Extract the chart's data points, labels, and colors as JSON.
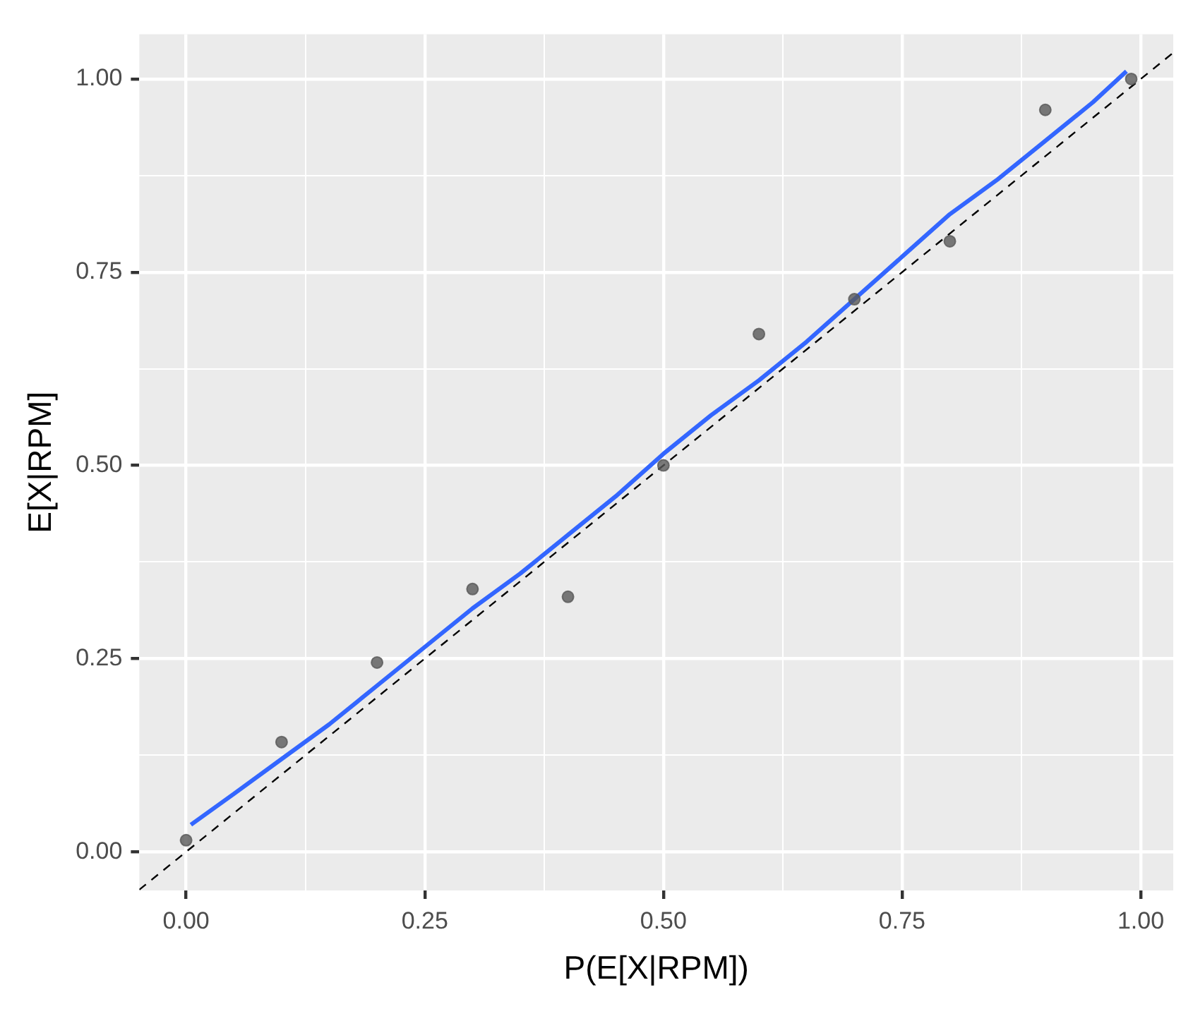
{
  "chart_data": {
    "type": "scatter",
    "xlabel": "P(E[X|RPM])",
    "ylabel": "E[X|RPM]",
    "xlim": [
      -0.049,
      1.034
    ],
    "ylim": [
      -0.05,
      1.058
    ],
    "xticks": [
      {
        "value": 0,
        "label": "0.00"
      },
      {
        "value": 0.125,
        "label": null
      },
      {
        "value": 0.25,
        "label": "0.25"
      },
      {
        "value": 0.375,
        "label": null
      },
      {
        "value": 0.5,
        "label": "0.50"
      },
      {
        "value": 0.625,
        "label": null
      },
      {
        "value": 0.75,
        "label": "0.75"
      },
      {
        "value": 0.875,
        "label": null
      },
      {
        "value": 1,
        "label": "1.00"
      }
    ],
    "yticks": [
      {
        "value": 0,
        "label": "0.00"
      },
      {
        "value": 0.125,
        "label": null
      },
      {
        "value": 0.25,
        "label": "0.25"
      },
      {
        "value": 0.375,
        "label": null
      },
      {
        "value": 0.5,
        "label": "0.50"
      },
      {
        "value": 0.625,
        "label": null
      },
      {
        "value": 0.75,
        "label": "0.75"
      },
      {
        "value": 0.875,
        "label": null
      },
      {
        "value": 1,
        "label": "1.00"
      }
    ],
    "grid": true,
    "legend": false,
    "series": [
      {
        "type": "line",
        "marker": "none",
        "line_style": "dashed",
        "color": "#000000",
        "x": [
          -0.049,
          1.034
        ],
        "values": [
          -0.049,
          1.034
        ]
      },
      {
        "type": "line",
        "marker": "none",
        "line_style": "solid",
        "color": "#3366ff",
        "x": [
          0.005,
          0.05,
          0.1,
          0.15,
          0.2,
          0.25,
          0.3,
          0.35,
          0.4,
          0.45,
          0.5,
          0.55,
          0.6,
          0.65,
          0.7,
          0.75,
          0.8,
          0.85,
          0.9,
          0.95,
          0.985
        ],
        "values": [
          0.035,
          0.075,
          0.12,
          0.165,
          0.215,
          0.265,
          0.315,
          0.36,
          0.41,
          0.46,
          0.515,
          0.565,
          0.61,
          0.66,
          0.715,
          0.77,
          0.825,
          0.87,
          0.92,
          0.97,
          1.01
        ]
      },
      {
        "marker": "circle",
        "color": "#595959",
        "x": [
          0,
          0.1,
          0.2,
          0.3,
          0.4,
          0.5,
          0.6,
          0.7,
          0.8,
          0.9,
          0.99
        ],
        "values": [
          0.015,
          0.142,
          0.245,
          0.34,
          0.33,
          0.5,
          0.67,
          0.715,
          0.79,
          0.96,
          1.0
        ]
      }
    ]
  }
}
